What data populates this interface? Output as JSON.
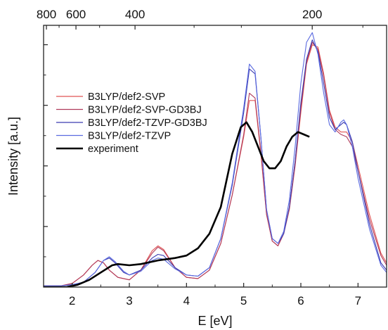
{
  "chart_data": {
    "type": "line",
    "xlabel": "E [eV]",
    "ylabel": "Intensity [a.u.]",
    "xlim": [
      1.5,
      7.5
    ],
    "ylim": [
      0,
      1.08
    ],
    "x_ticks": [
      2,
      3,
      4,
      5,
      6,
      7
    ],
    "top_axis": {
      "label_values": [
        800,
        600,
        400,
        200
      ],
      "minor_values": [
        900,
        700,
        500,
        300,
        250,
        175
      ],
      "note": "wavelength axis, nm = 1239.84 / E"
    },
    "grid": false,
    "legend_position": "center-left",
    "series": [
      {
        "name": "B3LYP/def2-SVP",
        "color": "#e05555",
        "points": [
          [
            1.5,
            0.005
          ],
          [
            1.8,
            0.005
          ],
          [
            2.0,
            0.015
          ],
          [
            2.2,
            0.05
          ],
          [
            2.35,
            0.09
          ],
          [
            2.45,
            0.11
          ],
          [
            2.55,
            0.1
          ],
          [
            2.65,
            0.07
          ],
          [
            2.8,
            0.04
          ],
          [
            3.0,
            0.03
          ],
          [
            3.2,
            0.07
          ],
          [
            3.4,
            0.15
          ],
          [
            3.5,
            0.17
          ],
          [
            3.6,
            0.155
          ],
          [
            3.8,
            0.08
          ],
          [
            4.0,
            0.04
          ],
          [
            4.2,
            0.035
          ],
          [
            4.4,
            0.07
          ],
          [
            4.6,
            0.18
          ],
          [
            4.8,
            0.38
          ],
          [
            5.0,
            0.62
          ],
          [
            5.1,
            0.77
          ],
          [
            5.2,
            0.77
          ],
          [
            5.3,
            0.55
          ],
          [
            5.4,
            0.3
          ],
          [
            5.5,
            0.19
          ],
          [
            5.6,
            0.17
          ],
          [
            5.7,
            0.22
          ],
          [
            5.8,
            0.32
          ],
          [
            5.9,
            0.5
          ],
          [
            6.0,
            0.72
          ],
          [
            6.1,
            0.92
          ],
          [
            6.2,
            1.0
          ],
          [
            6.3,
            0.99
          ],
          [
            6.4,
            0.88
          ],
          [
            6.5,
            0.73
          ],
          [
            6.6,
            0.66
          ],
          [
            6.7,
            0.64
          ],
          [
            6.8,
            0.64
          ],
          [
            6.9,
            0.6
          ],
          [
            7.0,
            0.5
          ],
          [
            7.2,
            0.3
          ],
          [
            7.4,
            0.14
          ],
          [
            7.5,
            0.1
          ]
        ]
      },
      {
        "name": "B3LYP/def2-SVP-GD3BJ",
        "color": "#b03a5a",
        "points": [
          [
            1.5,
            0.005
          ],
          [
            1.8,
            0.005
          ],
          [
            2.0,
            0.015
          ],
          [
            2.2,
            0.05
          ],
          [
            2.35,
            0.09
          ],
          [
            2.45,
            0.11
          ],
          [
            2.55,
            0.1
          ],
          [
            2.65,
            0.07
          ],
          [
            2.8,
            0.04
          ],
          [
            3.0,
            0.03
          ],
          [
            3.2,
            0.07
          ],
          [
            3.4,
            0.14
          ],
          [
            3.5,
            0.165
          ],
          [
            3.6,
            0.15
          ],
          [
            3.8,
            0.08
          ],
          [
            4.0,
            0.04
          ],
          [
            4.2,
            0.035
          ],
          [
            4.4,
            0.07
          ],
          [
            4.6,
            0.18
          ],
          [
            4.8,
            0.38
          ],
          [
            5.0,
            0.63
          ],
          [
            5.1,
            0.8
          ],
          [
            5.2,
            0.78
          ],
          [
            5.3,
            0.56
          ],
          [
            5.4,
            0.3
          ],
          [
            5.5,
            0.19
          ],
          [
            5.6,
            0.17
          ],
          [
            5.7,
            0.22
          ],
          [
            5.8,
            0.33
          ],
          [
            5.9,
            0.52
          ],
          [
            6.0,
            0.74
          ],
          [
            6.1,
            0.93
          ],
          [
            6.2,
            1.01
          ],
          [
            6.3,
            0.98
          ],
          [
            6.4,
            0.87
          ],
          [
            6.5,
            0.72
          ],
          [
            6.6,
            0.65
          ],
          [
            6.7,
            0.63
          ],
          [
            6.8,
            0.62
          ],
          [
            6.9,
            0.58
          ],
          [
            7.0,
            0.48
          ],
          [
            7.2,
            0.28
          ],
          [
            7.4,
            0.13
          ],
          [
            7.5,
            0.09
          ]
        ]
      },
      {
        "name": "B3LYP/def2-TZVP-GD3BJ",
        "color": "#3a3ab0",
        "points": [
          [
            1.5,
            0.005
          ],
          [
            1.8,
            0.005
          ],
          [
            2.0,
            0.01
          ],
          [
            2.2,
            0.02
          ],
          [
            2.4,
            0.06
          ],
          [
            2.55,
            0.11
          ],
          [
            2.65,
            0.12
          ],
          [
            2.75,
            0.1
          ],
          [
            2.9,
            0.06
          ],
          [
            3.0,
            0.05
          ],
          [
            3.2,
            0.07
          ],
          [
            3.4,
            0.12
          ],
          [
            3.5,
            0.135
          ],
          [
            3.6,
            0.13
          ],
          [
            3.8,
            0.08
          ],
          [
            4.0,
            0.05
          ],
          [
            4.2,
            0.045
          ],
          [
            4.4,
            0.08
          ],
          [
            4.6,
            0.2
          ],
          [
            4.8,
            0.42
          ],
          [
            5.0,
            0.72
          ],
          [
            5.1,
            0.9
          ],
          [
            5.2,
            0.88
          ],
          [
            5.3,
            0.62
          ],
          [
            5.4,
            0.32
          ],
          [
            5.5,
            0.2
          ],
          [
            5.6,
            0.18
          ],
          [
            5.7,
            0.22
          ],
          [
            5.8,
            0.33
          ],
          [
            5.9,
            0.52
          ],
          [
            6.0,
            0.76
          ],
          [
            6.1,
            0.94
          ],
          [
            6.2,
            1.02
          ],
          [
            6.3,
            0.97
          ],
          [
            6.4,
            0.84
          ],
          [
            6.5,
            0.7
          ],
          [
            6.6,
            0.65
          ],
          [
            6.7,
            0.67
          ],
          [
            6.75,
            0.68
          ],
          [
            6.8,
            0.67
          ],
          [
            6.9,
            0.6
          ],
          [
            7.0,
            0.48
          ],
          [
            7.2,
            0.26
          ],
          [
            7.4,
            0.1
          ],
          [
            7.5,
            0.07
          ]
        ]
      },
      {
        "name": "B3LYP/def2-TZVP",
        "color": "#5a6ae0",
        "points": [
          [
            1.5,
            0.005
          ],
          [
            1.8,
            0.005
          ],
          [
            2.0,
            0.01
          ],
          [
            2.2,
            0.02
          ],
          [
            2.4,
            0.06
          ],
          [
            2.55,
            0.11
          ],
          [
            2.65,
            0.125
          ],
          [
            2.75,
            0.105
          ],
          [
            2.9,
            0.065
          ],
          [
            3.0,
            0.05
          ],
          [
            3.2,
            0.065
          ],
          [
            3.4,
            0.11
          ],
          [
            3.5,
            0.12
          ],
          [
            3.6,
            0.115
          ],
          [
            3.8,
            0.075
          ],
          [
            4.0,
            0.05
          ],
          [
            4.2,
            0.045
          ],
          [
            4.4,
            0.08
          ],
          [
            4.6,
            0.2
          ],
          [
            4.8,
            0.43
          ],
          [
            5.0,
            0.74
          ],
          [
            5.1,
            0.92
          ],
          [
            5.2,
            0.89
          ],
          [
            5.3,
            0.62
          ],
          [
            5.4,
            0.32
          ],
          [
            5.5,
            0.2
          ],
          [
            5.6,
            0.18
          ],
          [
            5.7,
            0.23
          ],
          [
            5.8,
            0.36
          ],
          [
            5.9,
            0.58
          ],
          [
            6.0,
            0.84
          ],
          [
            6.1,
            1.01
          ],
          [
            6.2,
            1.05
          ],
          [
            6.3,
            0.96
          ],
          [
            6.4,
            0.8
          ],
          [
            6.5,
            0.67
          ],
          [
            6.6,
            0.64
          ],
          [
            6.7,
            0.68
          ],
          [
            6.75,
            0.69
          ],
          [
            6.8,
            0.67
          ],
          [
            6.9,
            0.58
          ],
          [
            7.0,
            0.45
          ],
          [
            7.2,
            0.24
          ],
          [
            7.4,
            0.09
          ],
          [
            7.5,
            0.06
          ]
        ]
      },
      {
        "name": "experiment",
        "color": "#000000",
        "points": [
          [
            1.5,
            0.0
          ],
          [
            1.9,
            0.0
          ],
          [
            2.1,
            0.01
          ],
          [
            2.3,
            0.03
          ],
          [
            2.5,
            0.06
          ],
          [
            2.7,
            0.09
          ],
          [
            2.8,
            0.095
          ],
          [
            3.0,
            0.09
          ],
          [
            3.2,
            0.095
          ],
          [
            3.5,
            0.11
          ],
          [
            3.8,
            0.12
          ],
          [
            4.0,
            0.13
          ],
          [
            4.2,
            0.16
          ],
          [
            4.4,
            0.22
          ],
          [
            4.6,
            0.33
          ],
          [
            4.8,
            0.55
          ],
          [
            4.95,
            0.66
          ],
          [
            5.05,
            0.68
          ],
          [
            5.15,
            0.64
          ],
          [
            5.25,
            0.58
          ],
          [
            5.35,
            0.52
          ],
          [
            5.45,
            0.49
          ],
          [
            5.55,
            0.49
          ],
          [
            5.65,
            0.52
          ],
          [
            5.75,
            0.58
          ],
          [
            5.85,
            0.62
          ],
          [
            5.95,
            0.64
          ],
          [
            6.05,
            0.63
          ],
          [
            6.15,
            0.62
          ]
        ]
      }
    ]
  }
}
